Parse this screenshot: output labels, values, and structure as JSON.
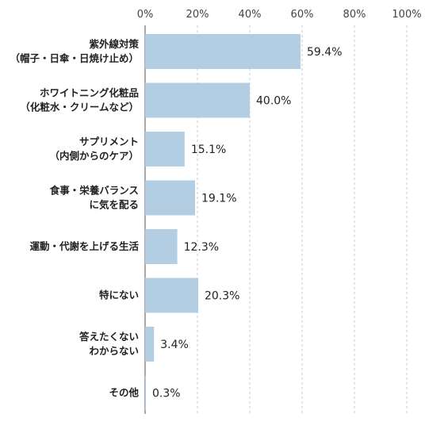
{
  "chart_data": {
    "type": "bar",
    "orientation": "horizontal",
    "categories": [
      [
        "紫外線対策",
        "（帽子・日傘・日焼け止め）"
      ],
      [
        "ホワイトニング化粧品",
        "（化粧水・クリームなど）"
      ],
      [
        "サプリメント",
        "（内側からのケア）"
      ],
      [
        "食事・栄養バランス",
        "に気を配る"
      ],
      [
        "運動・代謝を上げる生活"
      ],
      [
        "特にない"
      ],
      [
        "答えたくない",
        "わからない"
      ],
      [
        "その他"
      ]
    ],
    "values": [
      59.4,
      40.0,
      15.1,
      19.1,
      12.3,
      20.3,
      3.4,
      0.3
    ],
    "value_labels": [
      "59.4%",
      "40.0%",
      "15.1%",
      "19.1%",
      "12.3%",
      "20.3%",
      "3.4%",
      "0.3%"
    ],
    "xlim": [
      0,
      100
    ],
    "xticks": [
      0,
      20,
      40,
      60,
      80,
      100
    ],
    "xtick_labels": [
      "0%",
      "20%",
      "40%",
      "60%",
      "80%",
      "100%"
    ],
    "grid": true,
    "legend": "none",
    "colors": {
      "bar": "#b3cde3",
      "grid": "#c8c8c8",
      "axis": "#555555",
      "text": "#222222"
    }
  }
}
